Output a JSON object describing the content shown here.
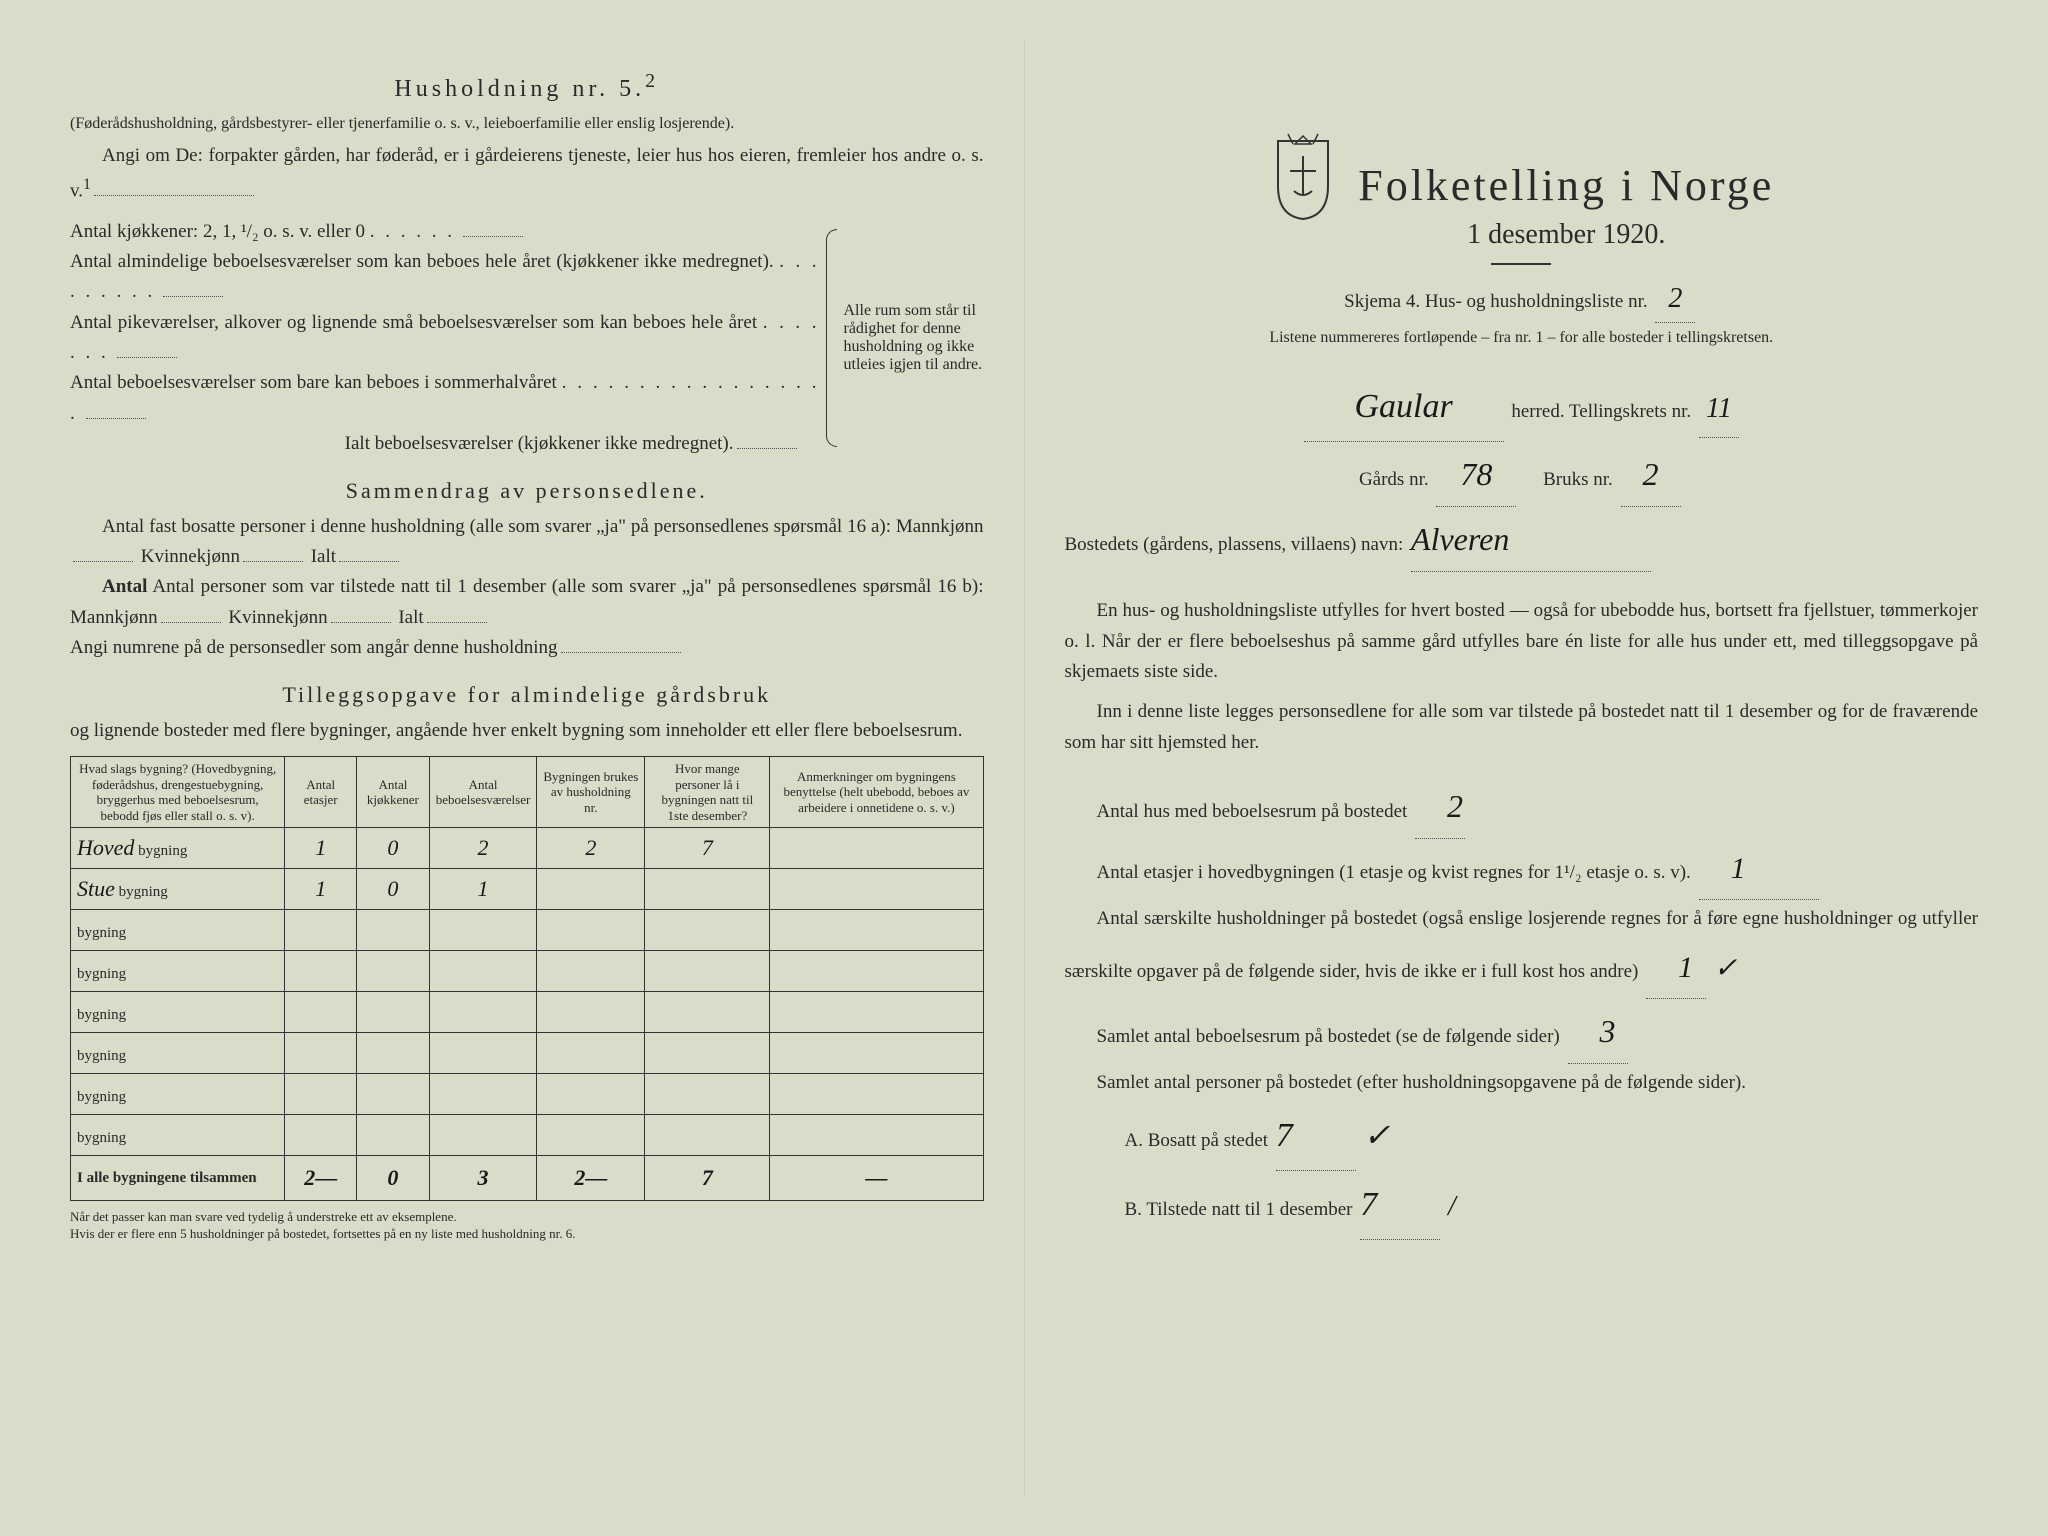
{
  "left": {
    "husholdning_title": "Husholdning nr. 5.",
    "husholdning_sup": "2",
    "husholdning_note": "(Føderådshusholdning, gårdsbestyrer- eller tjenerfamilie o. s. v., leieboerfamilie eller enslig losjerende).",
    "angi_text": "Angi om De: forpakter gården, har føderåd, er i gårdeierens tjeneste, leier hus hos eieren, fremleier hos andre o. s. v.",
    "kitchens_label": "Antal kjøkkener: 2, 1, ¹/₂ o. s. v. eller 0",
    "rooms_year_label": "Antal almindelige beboelsesværelser som kan beboes hele året (kjøkkener ikke medregnet).",
    "maid_rooms_label": "Antal pikeværelser, alkover og lignende små beboelsesværelser som kan beboes hele året",
    "summer_rooms_label": "Antal beboelsesværelser som bare kan beboes i sommerhalvåret",
    "total_rooms_label": "Ialt beboelsesværelser (kjøkkener ikke medregnet).",
    "brace_text": "Alle rum som står til rådighet for denne husholdning og ikke utleies igjen til andre.",
    "sammendrag_title": "Sammendrag av personsedlene.",
    "fast_bosatte": "Antal fast bosatte personer i denne husholdning (alle som svarer „ja\" på personsedlenes spørsmål 16 a): Mannkjønn",
    "kvinnekjonn": "Kvinnekjønn",
    "ialt": "Ialt",
    "tilstede": "Antal personer som var tilstede natt til 1 desember (alle som svarer „ja\" på personsedlenes spørsmål 16 b): Mannkjønn",
    "angi_numrene": "Angi numrene på de personsedler som angår denne husholdning",
    "tillegg_title": "Tilleggsopgave for almindelige gårdsbruk",
    "tillegg_sub": "og lignende bosteder med flere bygninger, angående hver enkelt bygning som inneholder ett eller flere beboelsesrum.",
    "table": {
      "columns": [
        "Hvad slags bygning?\n(Hovedbygning, føderådshus, drengestuebygning, bryggerhus med beboelsesrum, bebodd fjøs eller stall o. s. v).",
        "Antal etasjer",
        "Antal kjøkkener",
        "Antal beboelsesværelser",
        "Bygningen brukes av husholdning nr.",
        "Hvor mange personer lå i bygningen natt til 1ste desember?",
        "Anmerkninger om bygningens benyttelse (helt ubebodd, beboes av arbeidere i onnetidene o. s. v.)"
      ],
      "bygning_suffix": "bygning",
      "rows": [
        {
          "name": "Hoved",
          "etasjer": "1",
          "kjokkener": "0",
          "vaerelser": "2",
          "hushold": "2",
          "personer": "7",
          "anm": ""
        },
        {
          "name": "Stue",
          "etasjer": "1",
          "kjokkener": "0",
          "vaerelser": "1",
          "hushold": "",
          "personer": "",
          "anm": ""
        },
        {
          "name": "",
          "etasjer": "",
          "kjokkener": "",
          "vaerelser": "",
          "hushold": "",
          "personer": "",
          "anm": ""
        },
        {
          "name": "",
          "etasjer": "",
          "kjokkener": "",
          "vaerelser": "",
          "hushold": "",
          "personer": "",
          "anm": ""
        },
        {
          "name": "",
          "etasjer": "",
          "kjokkener": "",
          "vaerelser": "",
          "hushold": "",
          "personer": "",
          "anm": ""
        },
        {
          "name": "",
          "etasjer": "",
          "kjokkener": "",
          "vaerelser": "",
          "hushold": "",
          "personer": "",
          "anm": ""
        },
        {
          "name": "",
          "etasjer": "",
          "kjokkener": "",
          "vaerelser": "",
          "hushold": "",
          "personer": "",
          "anm": ""
        },
        {
          "name": "",
          "etasjer": "",
          "kjokkener": "",
          "vaerelser": "",
          "hushold": "",
          "personer": "",
          "anm": ""
        }
      ],
      "total_label": "I alle bygningene tilsammen",
      "totals": {
        "etasjer": "2—",
        "kjokkener": "0",
        "vaerelser": "3",
        "hushold": "2—",
        "personer": "7",
        "anm": "—"
      }
    },
    "footnote1": "Når det passer kan man svare ved tydelig å understreke ett av eksemplene.",
    "footnote2": "Hvis der er flere enn 5 husholdninger på bostedet, fortsettes på en ny liste med husholdning nr. 6."
  },
  "right": {
    "main_title": "Folketelling i Norge",
    "date": "1 desember 1920.",
    "skjema_line": "Skjema 4.  Hus- og husholdningsliste nr.",
    "liste_nr": "2",
    "listene_text": "Listene nummereres fortløpende – fra nr. 1 – for alle bosteder i tellingskretsen.",
    "herred": "Gaular",
    "herred_label": "herred.   Tellingskrets nr.",
    "tellingskrets_nr": "11",
    "gards_label": "Gårds nr.",
    "gards_nr": "78",
    "bruks_label": "Bruks nr.",
    "bruks_nr": "2",
    "bosted_label": "Bostedets (gårdens, plassens, villaens) navn:",
    "bosted_navn": "Alveren",
    "para1": "En hus- og husholdningsliste utfylles for hvert bosted — også for ubebodde hus, bortsett fra fjellstuer, tømmerkojer o. l.  Når der er flere beboelseshus på samme gård utfylles bare én liste for alle hus under ett, med tilleggsopgave på skjemaets siste side.",
    "para2": "Inn i denne liste legges personsedlene for alle som var tilstede på bostedet natt til 1 desember og for de fraværende som har sitt hjemsted her.",
    "antal_hus_label": "Antal hus med beboelsesrum på bostedet",
    "antal_hus": "2",
    "etasjer_label": "Antal etasjer i hovedbygningen (1 etasje og kvist regnes for 1¹/₂ etasje o. s. v).",
    "etasjer": "1",
    "saerskilte_label": "Antal særskilte husholdninger på bostedet (også enslige losjerende regnes for å føre egne husholdninger og utfyller særskilte opgaver på de følgende sider, hvis de ikke er i full kost hos andre)",
    "saerskilte": "1",
    "samlet_rum_label": "Samlet antal beboelsesrum på bostedet (se de følgende sider)",
    "samlet_rum": "3",
    "samlet_pers_label": "Samlet antal personer på bostedet (efter husholdningsopgavene på de følgende sider).",
    "bosatt_label": "A.  Bosatt på stedet",
    "bosatt": "7",
    "tilstede_label": "B.  Tilstede natt til 1 desember",
    "tilstede": "7"
  },
  "colors": {
    "background": "#d8dcc8",
    "text": "#2a2a2a",
    "handwriting": "#1a1a1a"
  }
}
